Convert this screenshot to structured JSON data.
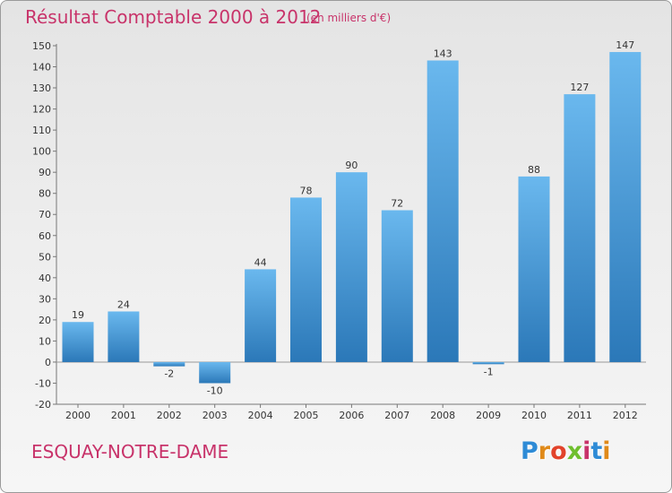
{
  "header": {
    "title": "Résultat Comptable 2000 à 2012",
    "subtitle": "(en milliers d'€)"
  },
  "footer": {
    "city": "ESQUAY-NOTRE-DAME",
    "logo_letters": [
      "P",
      "r",
      "o",
      "x",
      "i",
      "t",
      "i"
    ],
    "logo_colors": [
      "#2e8bd6",
      "#e08a1a",
      "#e2432b",
      "#6fbf2e",
      "#c8336a",
      "#2e8bd6",
      "#e08a1a"
    ]
  },
  "colors": {
    "title": "#c8336a",
    "bar_top": "#6ab8ee",
    "bar_bottom": "#2b78b8"
  },
  "chart_data": {
    "type": "bar",
    "title": "Résultat Comptable 2000 à 2012",
    "xlabel": "",
    "ylabel": "",
    "categories": [
      "2000",
      "2001",
      "2002",
      "2003",
      "2004",
      "2005",
      "2006",
      "2007",
      "2008",
      "2009",
      "2010",
      "2011",
      "2012"
    ],
    "values": [
      19,
      24,
      -2,
      -10,
      44,
      78,
      90,
      72,
      143,
      -1,
      88,
      127,
      147
    ],
    "ylim": [
      -20,
      150
    ],
    "yticks": [
      -20,
      -10,
      0,
      10,
      20,
      30,
      40,
      50,
      60,
      70,
      80,
      90,
      100,
      110,
      120,
      130,
      140,
      150
    ],
    "grid": false
  }
}
